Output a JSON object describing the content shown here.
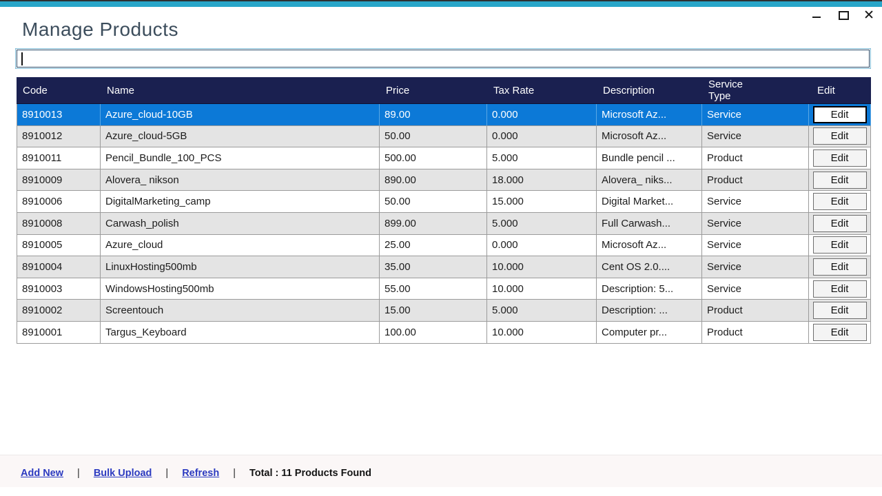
{
  "window": {
    "title": "Manage Products",
    "accent_teal": "#29a6c9",
    "controls": [
      {
        "name": "minimize"
      },
      {
        "name": "maximize"
      },
      {
        "name": "close"
      }
    ]
  },
  "search": {
    "value": "",
    "placeholder": ""
  },
  "table": {
    "header_bg": "#1a2050",
    "selected_row_bg": "#0c79d7",
    "alt_row_bg": "#e4e4e4",
    "columns": [
      {
        "key": "code",
        "label": "Code"
      },
      {
        "key": "name",
        "label": "Name"
      },
      {
        "key": "price",
        "label": "Price"
      },
      {
        "key": "tax_rate",
        "label": "Tax Rate"
      },
      {
        "key": "description",
        "label": "Description"
      },
      {
        "key": "service_type",
        "label": "Service Type"
      },
      {
        "key": "edit",
        "label": "Edit"
      }
    ],
    "rows": [
      {
        "code": "8910013",
        "name": "Azure_cloud-10GB",
        "price": "89.00",
        "tax_rate": "0.000",
        "description": "Microsoft Az...",
        "service_type": "Service",
        "edit_label": "Edit",
        "selected": true
      },
      {
        "code": "8910012",
        "name": "Azure_cloud-5GB",
        "price": "50.00",
        "tax_rate": "0.000",
        "description": "Microsoft Az...",
        "service_type": "Service",
        "edit_label": "Edit",
        "selected": false
      },
      {
        "code": "8910011",
        "name": "Pencil_Bundle_100_PCS",
        "price": "500.00",
        "tax_rate": "5.000",
        "description": "Bundle pencil ...",
        "service_type": "Product",
        "edit_label": "Edit",
        "selected": false
      },
      {
        "code": "8910009",
        "name": "Alovera_ nikson",
        "price": "890.00",
        "tax_rate": "18.000",
        "description": "Alovera_ niks...",
        "service_type": "Product",
        "edit_label": "Edit",
        "selected": false
      },
      {
        "code": "8910006",
        "name": "DigitalMarketing_camp",
        "price": "50.00",
        "tax_rate": "15.000",
        "description": "Digital Market...",
        "service_type": "Service",
        "edit_label": "Edit",
        "selected": false
      },
      {
        "code": "8910008",
        "name": "Carwash_polish",
        "price": "899.00",
        "tax_rate": "5.000",
        "description": "Full Carwash...",
        "service_type": "Service",
        "edit_label": "Edit",
        "selected": false
      },
      {
        "code": "8910005",
        "name": "Azure_cloud",
        "price": "25.00",
        "tax_rate": "0.000",
        "description": "Microsoft Az...",
        "service_type": "Service",
        "edit_label": "Edit",
        "selected": false
      },
      {
        "code": "8910004",
        "name": "LinuxHosting500mb",
        "price": "35.00",
        "tax_rate": "10.000",
        "description": "Cent OS 2.0....",
        "service_type": "Service",
        "edit_label": "Edit",
        "selected": false
      },
      {
        "code": "8910003",
        "name": "WindowsHosting500mb",
        "price": "55.00",
        "tax_rate": "10.000",
        "description": "Description: 5...",
        "service_type": "Service",
        "edit_label": "Edit",
        "selected": false
      },
      {
        "code": "8910002",
        "name": "Screentouch",
        "price": "15.00",
        "tax_rate": "5.000",
        "description": "Description: ...",
        "service_type": "Product",
        "edit_label": "Edit",
        "selected": false
      },
      {
        "code": "8910001",
        "name": "Targus_Keyboard",
        "price": "100.00",
        "tax_rate": "10.000",
        "description": "Computer pr...",
        "service_type": "Product",
        "edit_label": "Edit",
        "selected": false
      }
    ]
  },
  "footer": {
    "links": [
      {
        "label": "Add New"
      },
      {
        "label": "Bulk Upload"
      },
      {
        "label": "Refresh"
      }
    ],
    "separator": "|",
    "total_text": "Total : 11 Products Found",
    "link_color": "#2b3ac0"
  }
}
